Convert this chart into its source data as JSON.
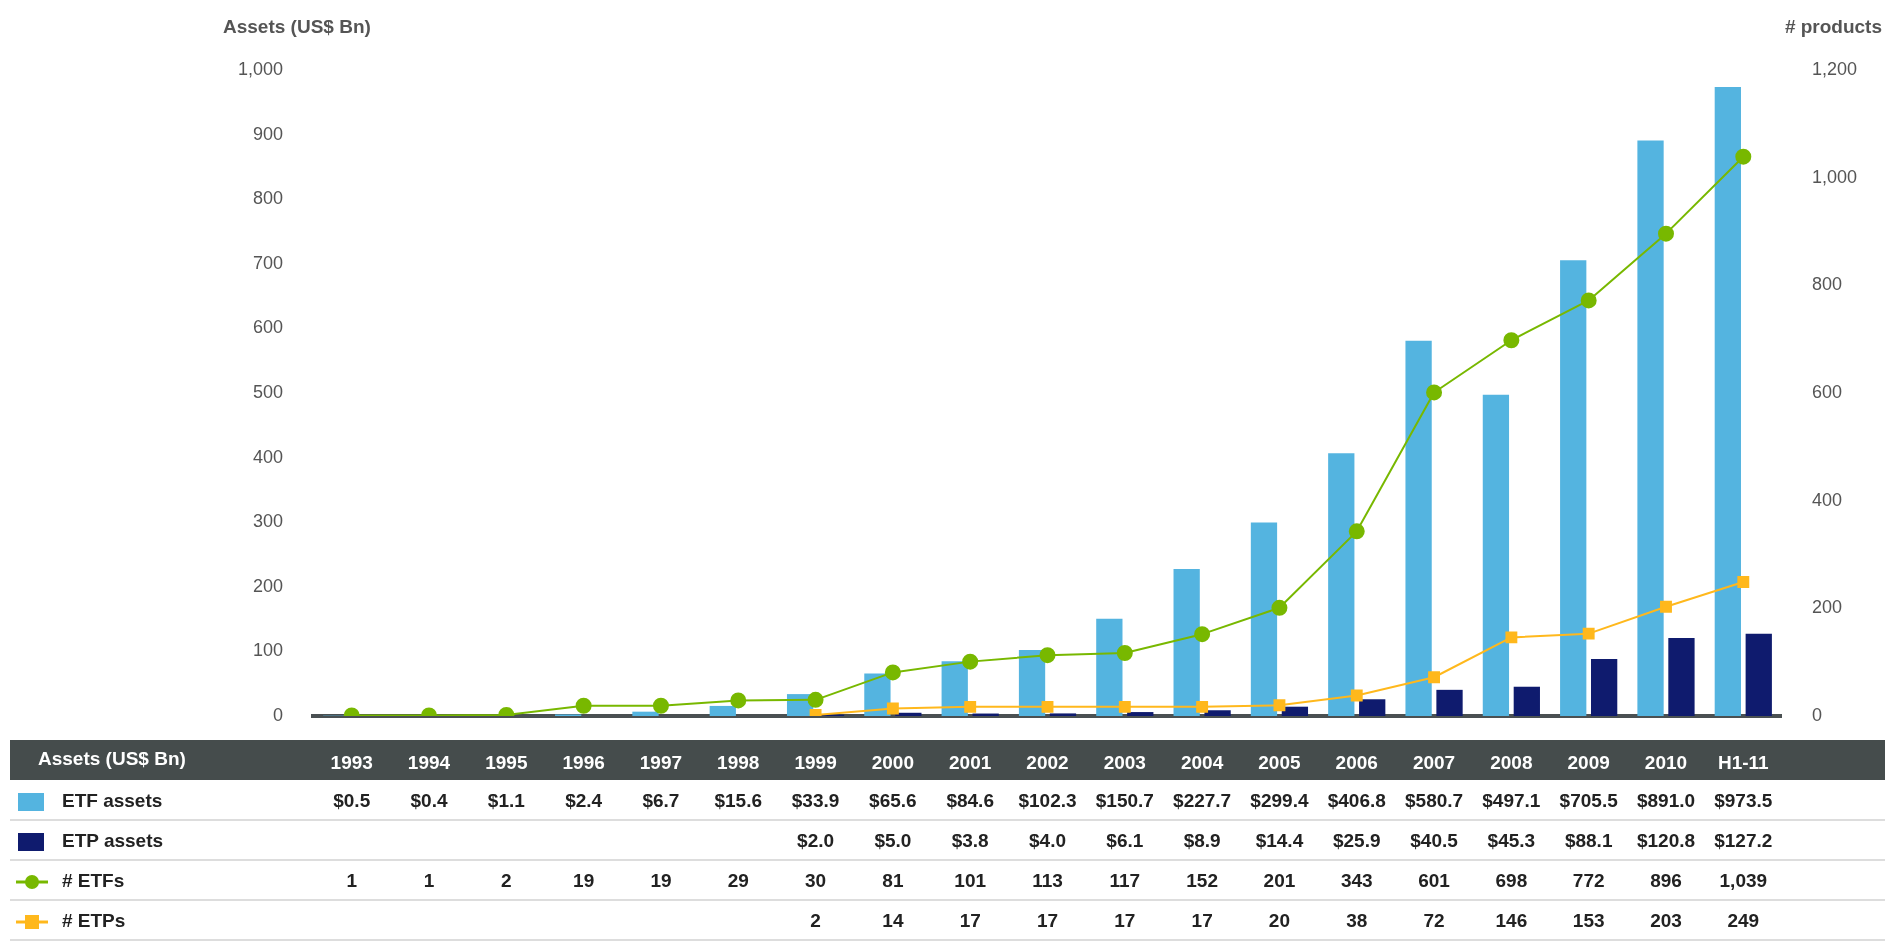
{
  "chart_data": {
    "type": "bar",
    "ylabel": "Assets (US$ Bn)",
    "y2label": "# products",
    "categories": [
      "1993",
      "1994",
      "1995",
      "1996",
      "1997",
      "1998",
      "1999",
      "2000",
      "2001",
      "2002",
      "2003",
      "2004",
      "2005",
      "2006",
      "2007",
      "2008",
      "2009",
      "2010",
      "H1-11"
    ],
    "series": [
      {
        "name": "ETF assets",
        "color": "#54b4e0",
        "values": [
          0.5,
          0.4,
          1.1,
          2.4,
          6.7,
          15.6,
          33.9,
          65.6,
          84.6,
          102.3,
          150.7,
          227.7,
          299.4,
          406.8,
          580.7,
          497.1,
          705.5,
          891.0,
          973.5
        ],
        "value_labels": [
          "$0.5",
          "$0.4",
          "$1.1",
          "$2.4",
          "$6.7",
          "$15.6",
          "$33.9",
          "$65.6",
          "$84.6",
          "$102.3",
          "$150.7",
          "$227.7",
          "$299.4",
          "$406.8",
          "$580.7",
          "$497.1",
          "$705.5",
          "$891.0",
          "$973.5"
        ]
      },
      {
        "name": "ETP assets",
        "color": "#0f1b6e",
        "values": [
          null,
          null,
          null,
          null,
          null,
          null,
          2.0,
          5.0,
          3.8,
          4.0,
          6.1,
          8.9,
          14.4,
          25.9,
          40.5,
          45.3,
          88.1,
          120.8,
          127.2
        ],
        "value_labels": [
          null,
          null,
          null,
          null,
          null,
          null,
          "$2.0",
          "$5.0",
          "$3.8",
          "$4.0",
          "$6.1",
          "$8.9",
          "$14.4",
          "$25.9",
          "$40.5",
          "$45.3",
          "$88.1",
          "$120.8",
          "$127.2"
        ]
      },
      {
        "name": "# ETFs",
        "type": "line",
        "axis": "y2",
        "marker": "circle",
        "color": "#78b800",
        "values": [
          1,
          1,
          2,
          19,
          19,
          29,
          30,
          81,
          101,
          113,
          117,
          152,
          201,
          343,
          601,
          698,
          772,
          896,
          1039
        ],
        "value_labels": [
          "1",
          "1",
          "2",
          "19",
          "19",
          "29",
          "30",
          "81",
          "101",
          "113",
          "117",
          "152",
          "201",
          "343",
          "601",
          "698",
          "772",
          "896",
          "1,039"
        ]
      },
      {
        "name": "# ETPs",
        "type": "line",
        "axis": "y2",
        "marker": "square",
        "color": "#ffb81c",
        "values": [
          null,
          null,
          null,
          null,
          null,
          null,
          2,
          14,
          17,
          17,
          17,
          17,
          20,
          38,
          72,
          146,
          153,
          203,
          249
        ],
        "value_labels": [
          null,
          null,
          null,
          null,
          null,
          null,
          "2",
          "14",
          "17",
          "17",
          "17",
          "17",
          "20",
          "38",
          "72",
          "146",
          "153",
          "203",
          "249"
        ]
      }
    ],
    "ylim": [
      0,
      1000
    ],
    "yticks": [
      0,
      {
        "value": 100,
        "label": "100"
      },
      200,
      300,
      400,
      500,
      600,
      700,
      800,
      900,
      {
        "value": 1000,
        "label": "1,000"
      }
    ],
    "y2lim": [
      0,
      1200
    ],
    "y2ticks": [
      0,
      200,
      400,
      600,
      800,
      {
        "value": 1000,
        "label": "1,000"
      },
      {
        "value": 1200,
        "label": "1,200"
      }
    ],
    "grid": false,
    "legend": "bottom"
  }
}
